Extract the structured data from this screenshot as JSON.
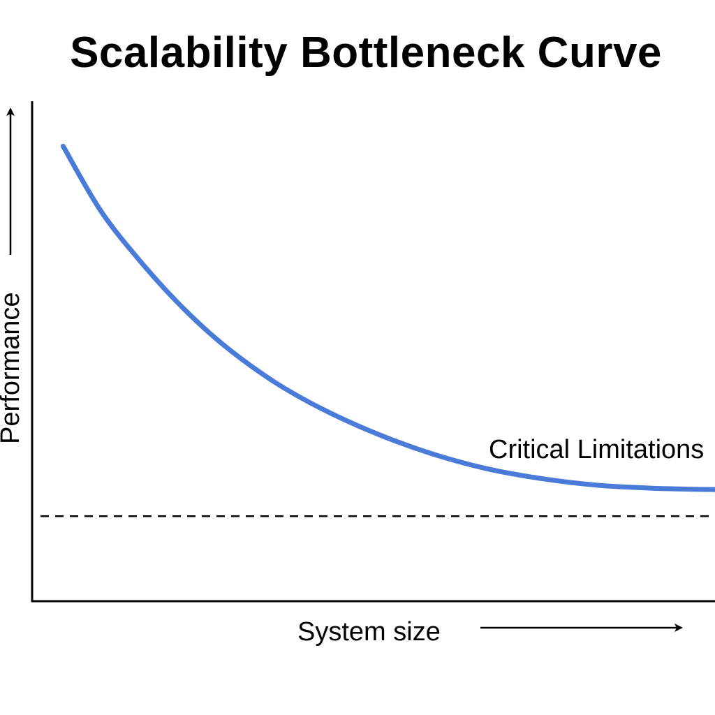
{
  "chart_data": {
    "type": "line",
    "title": "Scalability Bottleneck Curve",
    "xlabel": "System size",
    "ylabel": "Performance",
    "annotation": "Critical Limitations",
    "xlim": [
      0,
      100
    ],
    "ylim": [
      0,
      100
    ],
    "threshold": 17,
    "grid": false,
    "series": [
      {
        "values": [
          [
            4.5,
            91
          ],
          [
            10,
            78
          ],
          [
            16,
            67.5
          ],
          [
            22,
            58.5
          ],
          [
            28,
            51
          ],
          [
            35,
            44
          ],
          [
            42,
            38.5
          ],
          [
            50,
            33.5
          ],
          [
            58,
            29.5
          ],
          [
            66,
            26.5
          ],
          [
            74,
            24.5
          ],
          [
            82,
            23.2
          ],
          [
            90,
            22.6
          ],
          [
            100,
            22.3
          ]
        ],
        "color": "#4a7bd9"
      }
    ]
  }
}
